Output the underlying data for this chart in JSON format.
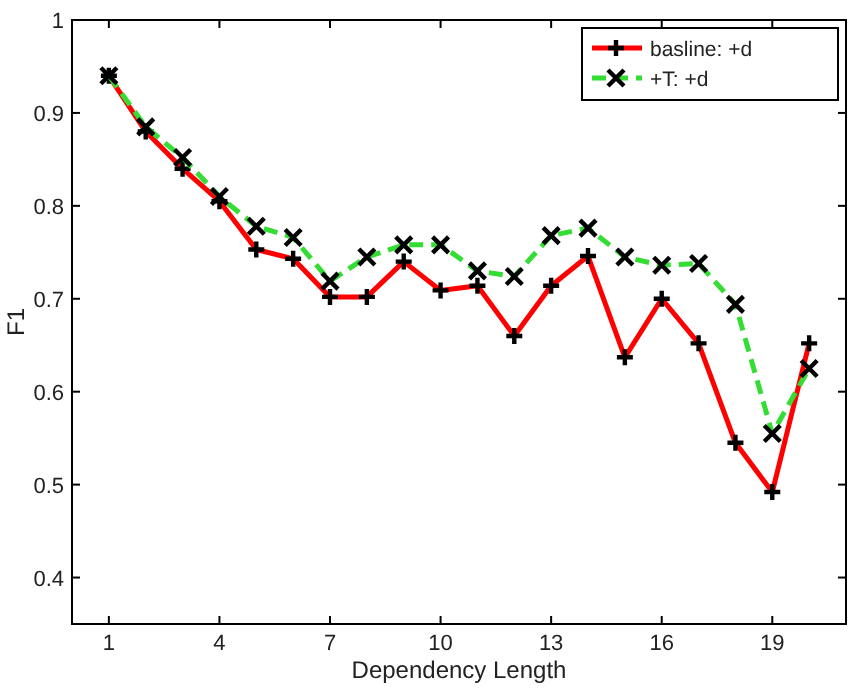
{
  "chart_data": {
    "type": "line",
    "xlabel": "Dependency Length",
    "ylabel": "F1",
    "x": [
      1,
      2,
      3,
      4,
      5,
      6,
      7,
      8,
      9,
      10,
      11,
      12,
      13,
      14,
      15,
      16,
      17,
      18,
      19,
      20
    ],
    "series": [
      {
        "name": "basline: +d",
        "color": "#ff0000",
        "line_style": "solid",
        "marker": "plus",
        "values": [
          0.94,
          0.88,
          0.84,
          0.805,
          0.753,
          0.743,
          0.702,
          0.702,
          0.74,
          0.709,
          0.714,
          0.66,
          0.714,
          0.746,
          0.637,
          0.7,
          0.652,
          0.545,
          0.492,
          0.652
        ]
      },
      {
        "name": "+T: +d",
        "color": "#33dd33",
        "line_style": "dashed",
        "marker": "cross",
        "values": [
          0.94,
          0.885,
          0.852,
          0.81,
          0.778,
          0.766,
          0.719,
          0.745,
          0.758,
          0.758,
          0.73,
          0.724,
          0.768,
          0.776,
          0.745,
          0.736,
          0.738,
          0.694,
          0.555,
          0.625
        ]
      }
    ],
    "xlim": [
      0,
      21
    ],
    "xticks": [
      1,
      4,
      7,
      10,
      13,
      16,
      19
    ],
    "ylim": [
      0.35,
      1
    ],
    "yticks": [
      0.4,
      0.5,
      0.6,
      0.7,
      0.8,
      0.9,
      1
    ],
    "grid": false,
    "legend": "top right"
  }
}
